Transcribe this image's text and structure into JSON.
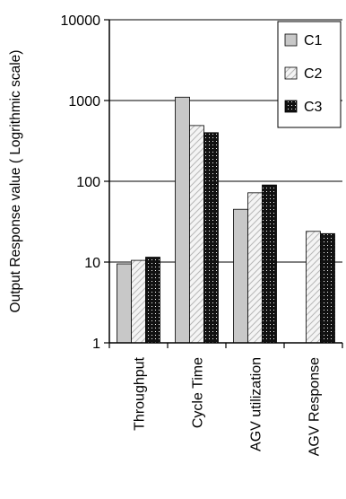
{
  "chart_data": {
    "type": "bar",
    "title": "",
    "xlabel": "",
    "ylabel": "Output Response value ( Logrithmic scale)",
    "yscale": "log",
    "ylim": [
      1,
      10000
    ],
    "yticks": [
      "1",
      "10",
      "100",
      "1000",
      "10000"
    ],
    "grid": "horizontal major gridlines",
    "legend_position": "top-right",
    "categories": [
      "Throughput",
      "Cycle Time",
      "AGV utilization",
      "AGV Response"
    ],
    "series": [
      {
        "name": "C1",
        "pattern": "solid-gray",
        "color": "#c8c8c8",
        "values": [
          9.5,
          1100,
          45,
          null
        ]
      },
      {
        "name": "C2",
        "pattern": "hatched-light",
        "color": "#e6e6e6",
        "values": [
          10.5,
          490,
          72,
          24
        ]
      },
      {
        "name": "C3",
        "pattern": "dotted-black",
        "color": "#111111",
        "values": [
          11.5,
          400,
          90,
          22.5
        ]
      }
    ]
  }
}
